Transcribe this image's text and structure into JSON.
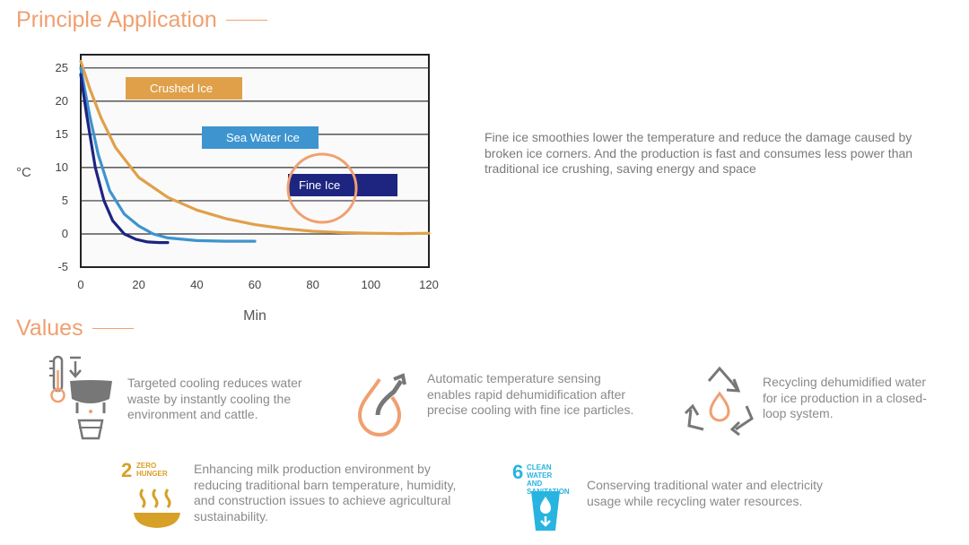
{
  "principle": {
    "title": "Principle Application"
  },
  "description": "Fine ice smoothies lower the temperature and reduce the damage caused by broken ice corners. And the production is fast and consumes less power than traditional ice crushing, saving energy and space",
  "values": {
    "title": "Values",
    "items": [
      {
        "text": "Targeted cooling reduces water waste by instantly cooling the environment and cattle."
      },
      {
        "text": "Automatic temperature sensing enables rapid dehumidification after precise cooling with fine ice particles."
      },
      {
        "text": "Recycling dehumidified water for ice production in a closed-loop system."
      },
      {
        "text": "Enhancing milk production environment by reducing traditional barn temperature, humidity, and construction issues to achieve agricultural sustainability."
      },
      {
        "text": "Conserving traditional water and electricity usage while recycling water resources."
      }
    ],
    "sdg2": {
      "number": "2",
      "label": "ZERO\nHUNGER"
    },
    "sdg6": {
      "number": "6",
      "label": "CLEAN WATER\nAND SANITATION"
    }
  },
  "colors": {
    "accent": "#f0a070",
    "crushed": "#e0a04a",
    "sea": "#3d94cf",
    "fine": "#1d2580",
    "sdg2": "#d7a027",
    "sdg6": "#28b4e0",
    "icon": "#777777"
  },
  "chart_data": {
    "type": "line",
    "title": "",
    "xlabel": "Min",
    "ylabel": "°C",
    "xlim": [
      0,
      120
    ],
    "ylim": [
      -5,
      27
    ],
    "xticks": [
      0,
      20,
      40,
      60,
      80,
      100,
      120
    ],
    "yticks": [
      25,
      20,
      15,
      10,
      5,
      0,
      -5
    ],
    "grid": "horizontal",
    "series": [
      {
        "name": "Crushed Ice",
        "color": "#e0a04a",
        "x": [
          0,
          3,
          7,
          12,
          20,
          30,
          40,
          50,
          60,
          70,
          80,
          90,
          100,
          110,
          120
        ],
        "y": [
          26,
          22,
          17.5,
          13,
          8.5,
          5.5,
          3.6,
          2.3,
          1.4,
          0.8,
          0.4,
          0.2,
          0.1,
          0.05,
          0.1
        ]
      },
      {
        "name": "Sea Water Ice",
        "color": "#3d94cf",
        "x": [
          0,
          3,
          6,
          10,
          15,
          20,
          25,
          30,
          40,
          50,
          60
        ],
        "y": [
          25,
          18,
          12,
          6.5,
          3,
          1.2,
          0,
          -0.6,
          -1,
          -1.1,
          -1.1
        ]
      },
      {
        "name": "Fine Ice",
        "color": "#1d2580",
        "x": [
          0,
          2,
          5,
          8,
          11,
          15,
          19,
          23,
          27,
          30
        ],
        "y": [
          24,
          18,
          10,
          5,
          2,
          0,
          -0.8,
          -1.2,
          -1.3,
          -1.3
        ]
      }
    ],
    "legend": [
      {
        "label": "Crushed Ice",
        "color": "#e0a04a"
      },
      {
        "label": "Sea Water Ice",
        "color": "#3d94cf"
      },
      {
        "label": "Fine Ice",
        "color": "#1d2580"
      }
    ],
    "highlight": "Fine Ice"
  }
}
